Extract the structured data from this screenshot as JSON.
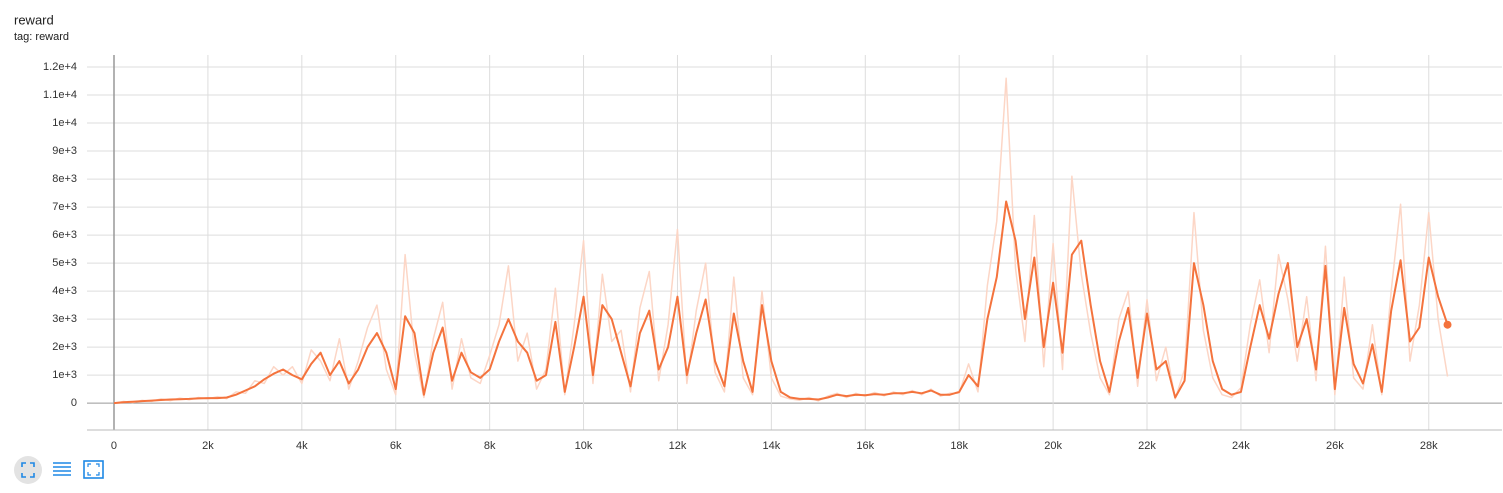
{
  "chart_data": {
    "type": "line",
    "title": "reward",
    "subtitle": "tag: reward",
    "x": [
      0,
      200,
      400,
      600,
      800,
      1000,
      1200,
      1400,
      1600,
      1800,
      2000,
      2200,
      2400,
      2600,
      2800,
      3000,
      3200,
      3400,
      3600,
      3800,
      4000,
      4200,
      4400,
      4600,
      4800,
      5000,
      5200,
      5400,
      5600,
      5800,
      6000,
      6200,
      6400,
      6600,
      6800,
      7000,
      7200,
      7400,
      7600,
      7800,
      8000,
      8200,
      8400,
      8600,
      8800,
      9000,
      9200,
      9400,
      9600,
      9800,
      10000,
      10200,
      10400,
      10600,
      10800,
      11000,
      11200,
      11400,
      11600,
      11800,
      12000,
      12200,
      12400,
      12600,
      12800,
      13000,
      13200,
      13400,
      13600,
      13800,
      14000,
      14200,
      14400,
      14600,
      14800,
      15000,
      15200,
      15400,
      15600,
      15800,
      16000,
      16200,
      16400,
      16600,
      16800,
      17000,
      17200,
      17400,
      17600,
      17800,
      18000,
      18200,
      18400,
      18600,
      18800,
      19000,
      19200,
      19400,
      19600,
      19800,
      20000,
      20200,
      20400,
      20600,
      20800,
      21000,
      21200,
      21400,
      21600,
      21800,
      22000,
      22200,
      22400,
      22600,
      22800,
      23000,
      23200,
      23400,
      23600,
      23800,
      24000,
      24200,
      24400,
      24600,
      24800,
      25000,
      25200,
      25400,
      25600,
      25800,
      26000,
      26200,
      26400,
      26600,
      26800,
      27000,
      27200,
      27400,
      27600,
      27800,
      28000,
      28200,
      28400
    ],
    "series": [
      {
        "color": "#fcd6c6",
        "values": [
          0,
          60,
          20,
          100,
          60,
          150,
          90,
          180,
          120,
          200,
          150,
          230,
          160,
          400,
          350,
          800,
          700,
          1300,
          1000,
          1300,
          700,
          1900,
          1500,
          800,
          2300,
          500,
          1500,
          2700,
          3500,
          1200,
          300,
          5300,
          1800,
          200,
          2300,
          3600,
          500,
          2300,
          900,
          700,
          1700,
          2800,
          4900,
          1500,
          2500,
          500,
          1200,
          4100,
          300,
          2800,
          5800,
          700,
          4600,
          2200,
          2600,
          400,
          3400,
          4700,
          800,
          2800,
          6200,
          700,
          3300,
          5000,
          1100,
          400,
          4500,
          900,
          300,
          4000,
          900,
          250,
          150,
          100,
          200,
          80,
          250,
          350,
          200,
          350,
          250,
          380,
          260,
          400,
          300,
          450,
          300,
          500,
          250,
          350,
          350,
          1400,
          400,
          4200,
          6500,
          11600,
          4800,
          2200,
          6700,
          1300,
          5700,
          1200,
          8100,
          4600,
          2500,
          900,
          300,
          3000,
          4000,
          600,
          3700,
          800,
          2000,
          150,
          1200,
          6800,
          2600,
          900,
          300,
          200,
          550,
          2800,
          4400,
          1800,
          5300,
          3700,
          1500,
          3800,
          800,
          5600,
          300,
          4500,
          900,
          500,
          2800,
          300,
          4000,
          7100,
          1500,
          3500,
          6800,
          3000,
          950
        ]
      },
      {
        "color": "#f4733d",
        "values": [
          0,
          30,
          50,
          70,
          90,
          110,
          130,
          140,
          150,
          170,
          180,
          180,
          200,
          300,
          450,
          600,
          850,
          1050,
          1200,
          1000,
          850,
          1400,
          1800,
          1000,
          1500,
          700,
          1200,
          2000,
          2500,
          1800,
          500,
          3100,
          2500,
          300,
          1800,
          2700,
          800,
          1800,
          1100,
          900,
          1200,
          2200,
          3000,
          2200,
          1800,
          800,
          1000,
          2900,
          400,
          2000,
          3800,
          1000,
          3500,
          3000,
          1800,
          600,
          2500,
          3300,
          1200,
          2000,
          3800,
          1000,
          2500,
          3700,
          1500,
          600,
          3200,
          1500,
          400,
          3500,
          1500,
          400,
          200,
          150,
          150,
          130,
          200,
          300,
          250,
          300,
          280,
          320,
          300,
          350,
          350,
          400,
          350,
          450,
          300,
          300,
          400,
          1000,
          600,
          3000,
          4500,
          7200,
          5800,
          3000,
          5200,
          2000,
          4300,
          1800,
          5300,
          5800,
          3500,
          1500,
          400,
          2200,
          3400,
          900,
          3200,
          1200,
          1500,
          200,
          800,
          5000,
          3500,
          1500,
          500,
          300,
          400,
          2000,
          3500,
          2300,
          3900,
          5000,
          2000,
          3000,
          1200,
          4900,
          500,
          3400,
          1400,
          700,
          2100,
          400,
          3300,
          5100,
          2200,
          2700,
          5200,
          3800,
          2800
        ]
      }
    ],
    "xlim": [
      -575,
      29560
    ],
    "ylim": [
      -960,
      12430
    ],
    "xticks": [
      0,
      {
        "value": 2000,
        "label": "2k"
      },
      {
        "value": 4000,
        "label": "4k"
      },
      {
        "value": 6000,
        "label": "6k"
      },
      {
        "value": 8000,
        "label": "8k"
      },
      {
        "value": 10000,
        "label": "10k"
      },
      {
        "value": 12000,
        "label": "12k"
      },
      {
        "value": 14000,
        "label": "14k"
      },
      {
        "value": 16000,
        "label": "16k"
      },
      {
        "value": 18000,
        "label": "18k"
      },
      {
        "value": 20000,
        "label": "20k"
      },
      {
        "value": 22000,
        "label": "22k"
      },
      {
        "value": 24000,
        "label": "24k"
      },
      {
        "value": 26000,
        "label": "26k"
      },
      {
        "value": 28000,
        "label": "28k"
      }
    ],
    "yticks": [
      0,
      {
        "value": 1000,
        "label": "1e+3"
      },
      {
        "value": 2000,
        "label": "2e+3"
      },
      {
        "value": 3000,
        "label": "3e+3"
      },
      {
        "value": 4000,
        "label": "4e+3"
      },
      {
        "value": 5000,
        "label": "5e+3"
      },
      {
        "value": 6000,
        "label": "6e+3"
      },
      {
        "value": 7000,
        "label": "7e+3"
      },
      {
        "value": 8000,
        "label": "8e+3"
      },
      {
        "value": 9000,
        "label": "9e+3"
      },
      {
        "value": 10000,
        "label": "1e+4"
      },
      {
        "value": 11000,
        "label": "1.1e+4"
      },
      {
        "value": 12000,
        "label": "1.2e+4"
      }
    ],
    "grid": true
  }
}
